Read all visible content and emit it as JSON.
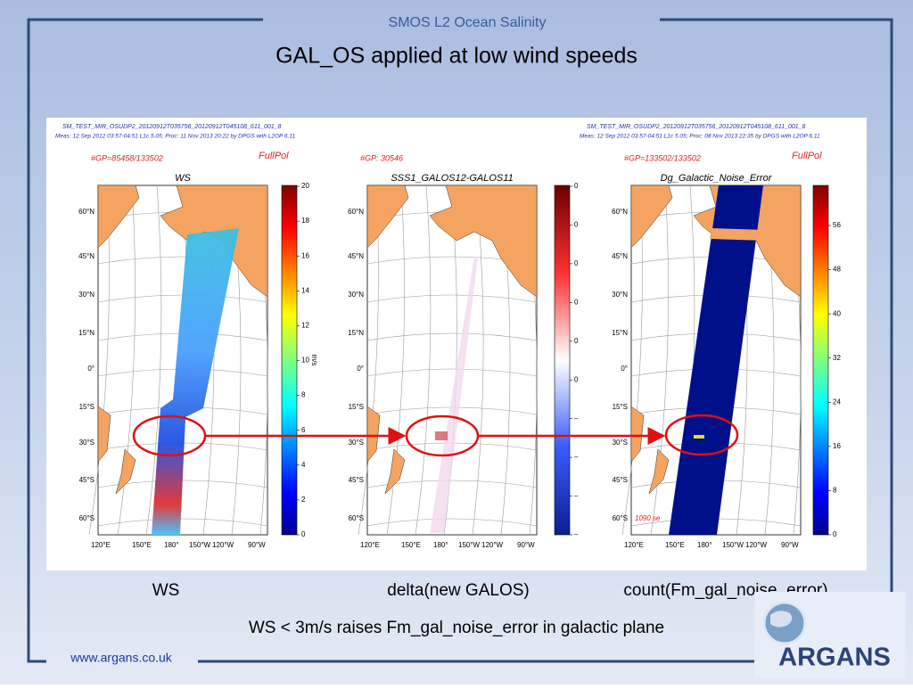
{
  "header": {
    "brand": "SMOS L2 Ocean Salinity",
    "title": "GAL_OS applied at low wind speeds"
  },
  "figure": {
    "latitudes": [
      "60°N",
      "45°N",
      "30°N",
      "15°N",
      "0°",
      "15°S",
      "30°S",
      "45°S",
      "60°S"
    ],
    "longitudes": [
      "120°E",
      "150°E",
      "180°",
      "150°W",
      "120°W",
      "90°W"
    ],
    "panels": [
      {
        "file": "SM_TEST_MIR_OSUDP2_20120912T035756_20120912T045108_611_001_8",
        "meas": "Meas: 12 Sep 2012 03:57-04:51 L1c 5.05; Proc: 11 Nov 2013 20:22 by DPGS with L2OP 6.11",
        "gp": "#GP=85458/133502",
        "mode": "FullPol",
        "title": "WS",
        "unit": "m/s",
        "colorbar_ticks": [
          "0",
          "2",
          "4",
          "6",
          "8",
          "10",
          "12",
          "14",
          "16",
          "18",
          "20"
        ]
      },
      {
        "gp": "#GP: 30546",
        "title": "SSS1_GALOS12-GALOS11",
        "colorbar_ticks": [
          "–",
          "–",
          "–",
          "–",
          "0",
          "0",
          "0",
          "0",
          "0",
          "0"
        ]
      },
      {
        "file": "SM_TEST_MIR_OSUDP2_20120912T035756_20120912T045108_611_001_8",
        "meas": "Meas: 12 Sep 2012 03:57-04:51 L1c 5.05; Proc: 08 Nov 2013 22:35 by DPGS with L2OP 6.11",
        "gp": "#GP=133502/133502",
        "mode": "FullPol",
        "title": "Dg_Galactic_Noise_Error",
        "note": "1090 se",
        "colorbar_ticks": [
          "0",
          "8",
          "16",
          "24",
          "32",
          "40",
          "48",
          "56"
        ]
      }
    ]
  },
  "captions": [
    "WS",
    "delta(new GALOS)",
    "count(Fm_gal_noise_error)"
  ],
  "statement": "WS < 3m/s raises Fm_gal_noise_error in galactic plane",
  "footer": {
    "url": "www.argans.co.uk",
    "logo": "ARGANS"
  }
}
